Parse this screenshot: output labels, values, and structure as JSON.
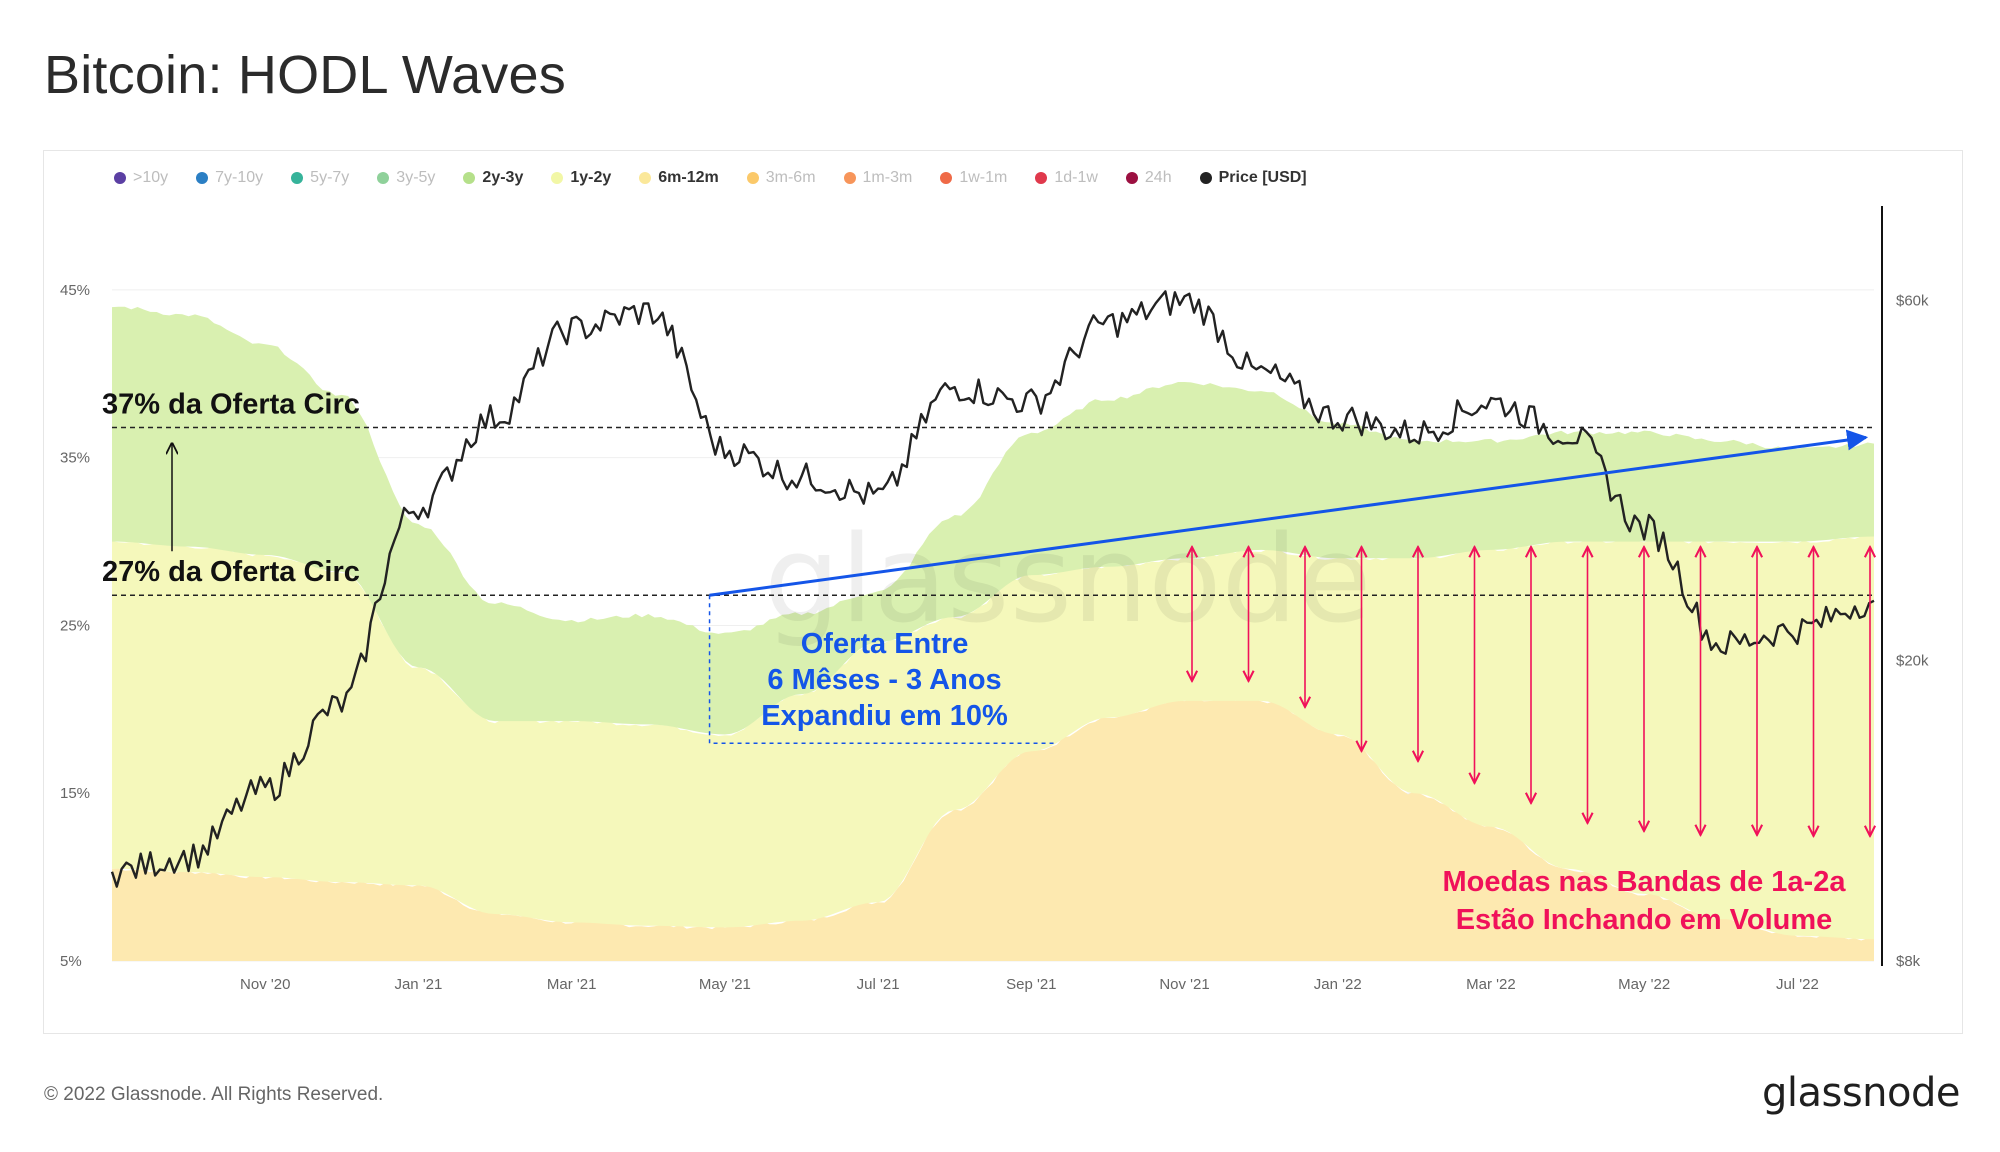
{
  "title": "Bitcoin: HODL Waves",
  "legend": [
    {
      "label": ">10y",
      "color": "#5b3fa3",
      "active": false
    },
    {
      "label": "7y-10y",
      "color": "#2b7fc4",
      "active": false
    },
    {
      "label": "5y-7y",
      "color": "#36b39a",
      "active": false
    },
    {
      "label": "3y-5y",
      "color": "#8fd19a",
      "active": false
    },
    {
      "label": "2y-3y",
      "color": "#b5e08a",
      "active": true
    },
    {
      "label": "1y-2y",
      "color": "#f2f7a6",
      "active": true
    },
    {
      "label": "6m-12m",
      "color": "#fbe89a",
      "active": true
    },
    {
      "label": "3m-6m",
      "color": "#fbc96a",
      "active": false
    },
    {
      "label": "1m-3m",
      "color": "#f7955a",
      "active": false
    },
    {
      "label": "1w-1m",
      "color": "#ef6a47",
      "active": false
    },
    {
      "label": "1d-1w",
      "color": "#e0394c",
      "active": false
    },
    {
      "label": "24h",
      "color": "#9c1041",
      "active": false
    },
    {
      "label": "Price [USD]",
      "color": "#222222",
      "active": true
    }
  ],
  "chart_data": {
    "type": "area",
    "x": [
      "Sep '20",
      "Oct '20",
      "Nov '20",
      "Dec '20",
      "Jan '21",
      "Feb '21",
      "Mar '21",
      "Apr '21",
      "May '21",
      "Jun '21",
      "Jul '21",
      "Aug '21",
      "Sep '21",
      "Oct '21",
      "Nov '21",
      "Dec '21",
      "Jan '22",
      "Feb '22",
      "Mar '22",
      "Apr '22",
      "May '22",
      "Jun '22",
      "Jul '22",
      "Aug '22"
    ],
    "x_ticks": [
      "Nov '20",
      "Jan '21",
      "Mar '21",
      "May '21",
      "Jul '21",
      "Sep '21",
      "Nov '21",
      "Jan '22",
      "Mar '22",
      "May '22",
      "Jul '22"
    ],
    "y_left_ticks": [
      "5%",
      "15%",
      "25%",
      "35%",
      "45%"
    ],
    "y_left_range": [
      5,
      50
    ],
    "y_right_ticks": [
      "$8k",
      "$20k",
      "$60k"
    ],
    "y_right_scale": "log",
    "y_right_range": [
      8000,
      80000
    ],
    "series": [
      {
        "name": "6m-12m",
        "color": "#fde9b0",
        "values": [
          10.5,
          10.3,
          10.0,
          9.7,
          9.5,
          7.8,
          7.3,
          7.1,
          7.0,
          7.4,
          8.5,
          14.0,
          17.5,
          19.5,
          20.5,
          20.5,
          18.5,
          15.0,
          13.0,
          10.5,
          9.0,
          7.5,
          6.5,
          6.3
        ]
      },
      {
        "name": "1y-2y",
        "color": "#f5f8bb",
        "values": [
          19.5,
          19.4,
          19.2,
          18.5,
          13.0,
          11.5,
          12.0,
          12.0,
          11.5,
          13.5,
          15.5,
          11.5,
          10.5,
          9.0,
          8.5,
          9.0,
          10.5,
          14.0,
          16.5,
          19.5,
          21.0,
          22.5,
          23.5,
          24.0
        ]
      },
      {
        "name": "2y-3y",
        "color": "#d9f0b0",
        "values": [
          14.0,
          13.8,
          12.5,
          10.5,
          8.5,
          7.0,
          6.0,
          6.5,
          6.0,
          4.8,
          3.0,
          6.0,
          8.5,
          10.0,
          10.5,
          9.5,
          8.0,
          7.0,
          6.5,
          6.5,
          6.5,
          6.0,
          5.5,
          5.5
        ]
      }
    ],
    "price_usd": [
      10500,
      11000,
      13500,
      17500,
      32000,
      42000,
      55000,
      58000,
      38000,
      35000,
      33000,
      46000,
      44000,
      56000,
      60000,
      48000,
      42000,
      40000,
      44000,
      40000,
      30000,
      21000,
      22000,
      24000
    ],
    "annotations": [
      {
        "text": "37% da Oferta Circ",
        "y": 36.8
      },
      {
        "text": "27% da Oferta Circ",
        "y": 26.8
      },
      {
        "lines": [
          "Oferta Entre",
          "6 Mêses - 3 Anos",
          "Expandiu em 10%"
        ]
      },
      {
        "lines": [
          "Moedas nas Bandas de 1a-2a",
          "Estão Inchando em Volume"
        ]
      }
    ],
    "watermark": "glassnode",
    "grid": true,
    "legend_position": "top-left"
  },
  "footer": {
    "copyright": "© 2022 Glassnode. All Rights Reserved.",
    "brand": "glassnode"
  }
}
